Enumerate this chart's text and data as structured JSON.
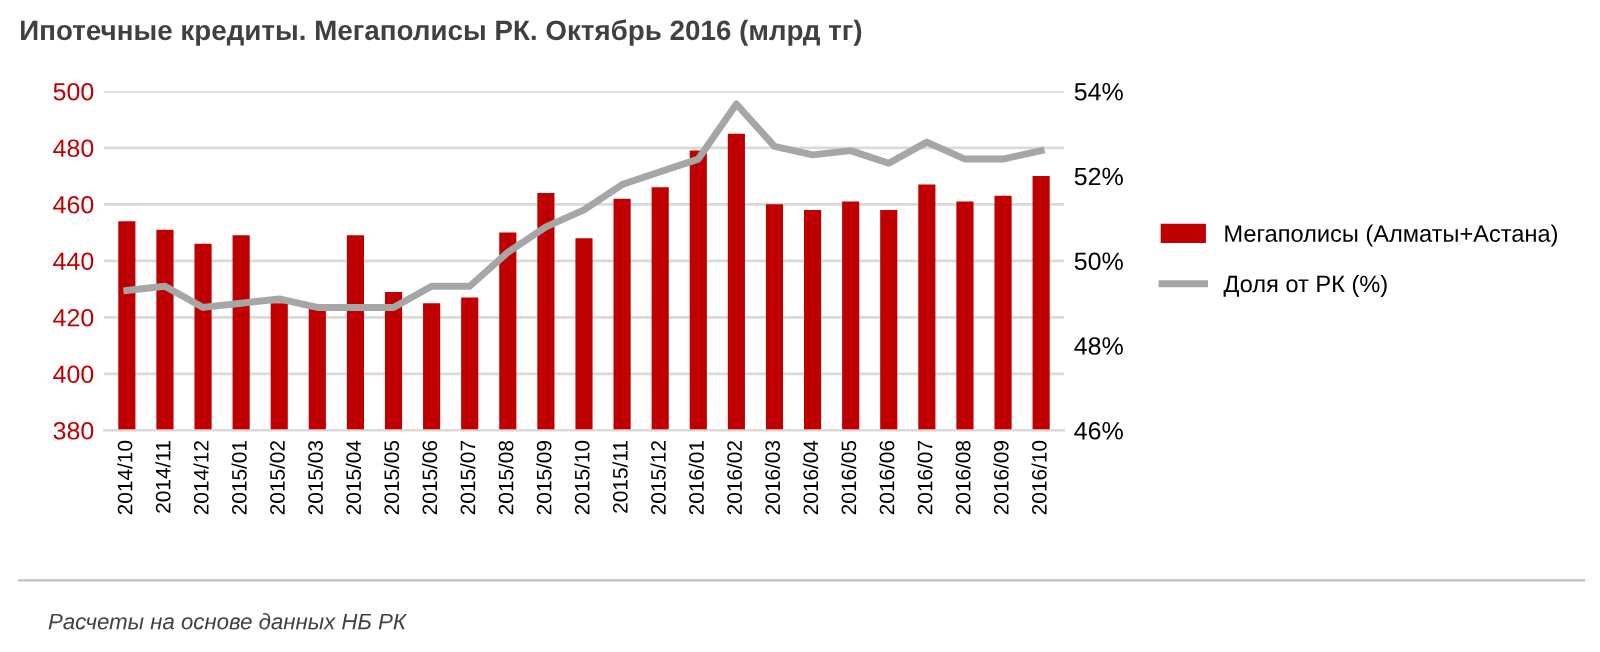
{
  "chart_data": {
    "type": "bar",
    "title": "Ипотечные кредиты. Мегаполисы РК. Октябрь 2016 (млрд тг)",
    "categories": [
      "2014/10",
      "2014/11",
      "2014/12",
      "2015/01",
      "2015/02",
      "2015/03",
      "2015/04",
      "2015/05",
      "2015/06",
      "2015/07",
      "2015/08",
      "2015/09",
      "2015/10",
      "2015/11",
      "2015/12",
      "2016/01",
      "2016/02",
      "2016/03",
      "2016/04",
      "2016/05",
      "2016/06",
      "2016/07",
      "2016/08",
      "2016/09",
      "2016/10"
    ],
    "series": [
      {
        "name": "Мегаполисы (Алматы+Астана)",
        "color": "#c00000",
        "values": [
          454,
          451,
          446,
          449,
          425,
          423,
          449,
          429,
          425,
          427,
          450,
          464,
          448,
          462,
          466,
          479,
          485,
          460,
          458,
          461,
          458,
          467,
          461,
          463,
          470
        ]
      },
      {
        "name": "Доля от РК (%)",
        "type": "line",
        "axis": "y2",
        "color": "#a6a6a6",
        "values": [
          49.3,
          49.4,
          48.9,
          49.0,
          49.1,
          48.9,
          48.9,
          48.9,
          49.4,
          49.4,
          50.2,
          50.8,
          51.2,
          51.8,
          52.1,
          52.4,
          53.7,
          52.7,
          52.5,
          52.6,
          52.3,
          52.8,
          52.4,
          52.4,
          52.6
        ]
      }
    ],
    "ylim": [
      380,
      500
    ],
    "yticks": [
      380,
      400,
      420,
      440,
      460,
      480,
      500
    ],
    "y2lim": [
      46,
      54
    ],
    "y2ticks": [
      {
        "value": 46,
        "label": "46%"
      },
      {
        "value": 48,
        "label": "48%"
      },
      {
        "value": 50,
        "label": "50%"
      },
      {
        "value": 52,
        "label": "52%"
      },
      {
        "value": 54,
        "label": "54%"
      }
    ],
    "grid": "y",
    "legend": "right",
    "marker": "none",
    "line_style": "solid",
    "annotations": [
      "Расчеты на основе данных НБ РК"
    ]
  }
}
